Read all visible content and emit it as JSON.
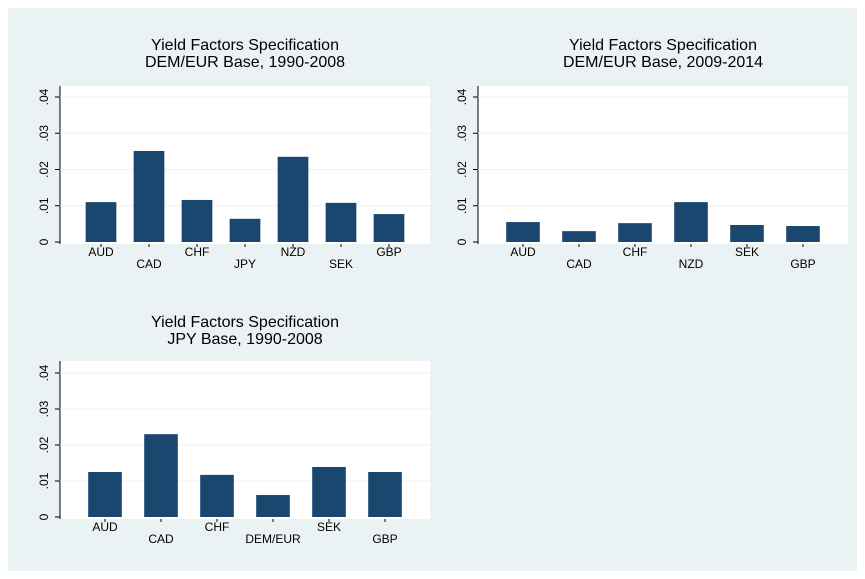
{
  "chart_data": [
    {
      "type": "bar",
      "title": "Yield Factors Specification",
      "subtitle": "DEM/EUR Base, 1990-2008",
      "categories": [
        "AUD",
        "CAD",
        "CHF",
        "JPY",
        "NZD",
        "SEK",
        "GBP"
      ],
      "values": [
        0.011,
        0.0251,
        0.0116,
        0.0064,
        0.0235,
        0.0108,
        0.0077
      ],
      "color": "#1a476f",
      "ylim": [
        0,
        0.04
      ],
      "yticks": [
        0,
        {
          "value": 0.01,
          "label": ".01"
        },
        {
          "value": 0.02,
          "label": ".02"
        },
        {
          "value": 0.03,
          "label": ".03"
        },
        {
          "value": 0.04,
          "label": ".04"
        }
      ],
      "grid": true
    },
    {
      "type": "bar",
      "title": "Yield Factors Specification",
      "subtitle": "DEM/EUR Base, 2009-2014",
      "categories": [
        "AUD",
        "CAD",
        "CHF",
        "NZD",
        "SEK",
        "GBP"
      ],
      "values": [
        0.0055,
        0.003,
        0.0052,
        0.011,
        0.0047,
        0.0044
      ],
      "color": "#1a476f",
      "ylim": [
        0,
        0.04
      ],
      "yticks": [
        0,
        {
          "value": 0.01,
          "label": ".01"
        },
        {
          "value": 0.02,
          "label": ".02"
        },
        {
          "value": 0.03,
          "label": ".03"
        },
        {
          "value": 0.04,
          "label": ".04"
        }
      ],
      "grid": true
    },
    {
      "type": "bar",
      "title": "Yield Factors Specification",
      "subtitle": "JPY Base, 1990-2008",
      "categories": [
        "AUD",
        "CAD",
        "CHF",
        "DEM/EUR",
        "SEK",
        "GBP"
      ],
      "values": [
        0.0125,
        0.023,
        0.0117,
        0.0061,
        0.0139,
        0.0125
      ],
      "color": "#1a476f",
      "ylim": [
        0,
        0.04
      ],
      "yticks": [
        0,
        {
          "value": 0.01,
          "label": ".01"
        },
        {
          "value": 0.02,
          "label": ".02"
        },
        {
          "value": 0.03,
          "label": ".03"
        },
        {
          "value": 0.04,
          "label": ".04"
        }
      ],
      "grid": true
    }
  ]
}
